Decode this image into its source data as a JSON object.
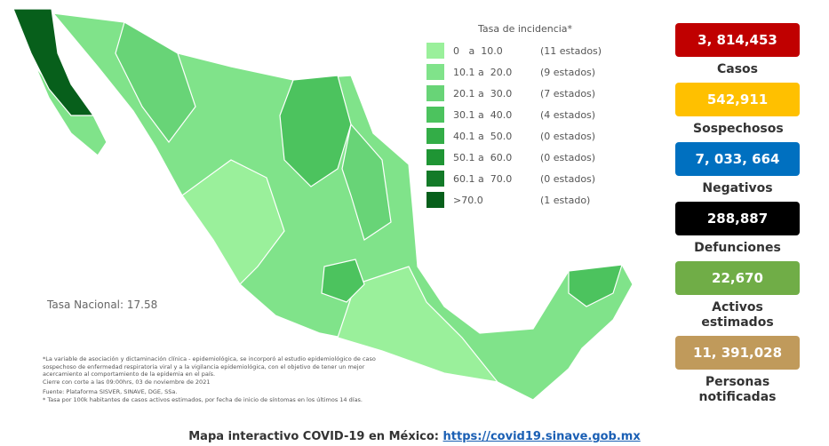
{
  "legend": {
    "title": "Tasa de incidencia*",
    "items": [
      {
        "range": "0   a  10.0",
        "count": "(11 estados)",
        "color": "#9af09b"
      },
      {
        "range": "10.1 a  20.0",
        "count": "(9 estados)",
        "color": "#80e38a"
      },
      {
        "range": "20.1 a  30.0",
        "count": "(7 estados)",
        "color": "#68d477"
      },
      {
        "range": "30.1 a  40.0",
        "count": "(4 estados)",
        "color": "#4cc35e"
      },
      {
        "range": "40.1 a  50.0",
        "count": "(0 estados)",
        "color": "#33ad47"
      },
      {
        "range": "50.1 a  60.0",
        "count": "(0 estados)",
        "color": "#1f9534"
      },
      {
        "range": "60.1 a  70.0",
        "count": "(0 estados)",
        "color": "#137a28"
      },
      {
        "range": ">70.0",
        "count": "(1 estado)",
        "color": "#075f1b"
      }
    ]
  },
  "national_rate": "Tasa Nacional: 17.58",
  "notes": [
    "*La variable de asociación y dictaminación clínica - epidemiológica, se incorporó al estudio epidemiológico de caso sospechoso de enfermedad respiratoria viral y a la vigilancia epidemiológica, con el objetivo de tener un mejor acercamiento al comportamiento de la epidemia en el país.",
    "Cierre con corte a las 09:00hrs, 03 de noviembre de 2021",
    "Fuente: Plataforma SISVER, SINAVE, DGE, SSa.",
    "* Tasa por 100k habitantes de casos activos estimados, por fecha de inicio de síntomas en los últimos 14 días."
  ],
  "stats": [
    {
      "value": "3, 814,453",
      "label": "Casos",
      "color": "#c00000"
    },
    {
      "value": "542,911",
      "label": "Sospechosos",
      "color": "#ffc000"
    },
    {
      "value": "7, 033, 664",
      "label": "Negativos",
      "color": "#0070c0"
    },
    {
      "value": "288,887",
      "label": "Defunciones",
      "color": "#000000"
    },
    {
      "value": "22,670",
      "label": "Activos estimados",
      "color": "#70ad47"
    },
    {
      "value": "11, 391,028",
      "label": "Personas notificadas",
      "color": "#c09a5b"
    }
  ],
  "footer": {
    "text": "Mapa interactivo COVID-19 en México:",
    "link": "https://covid19.sinave.gob.mx"
  }
}
